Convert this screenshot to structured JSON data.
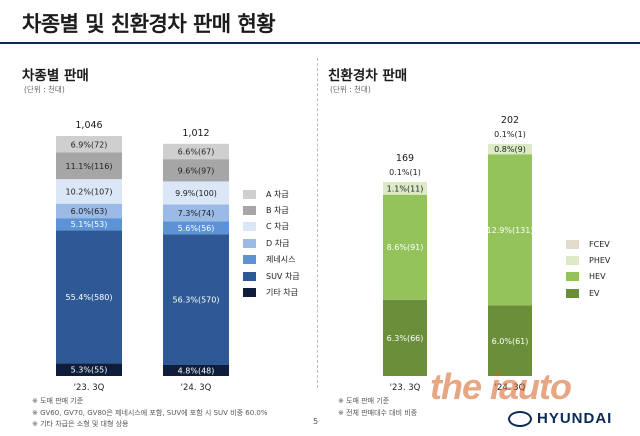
{
  "header": {
    "title": "차종별 및 친환경차 판매 현황"
  },
  "page_number": "5",
  "watermark": "the iauto",
  "brand": "HYUNDAI",
  "colors": {
    "title_rule": "#0b2a55",
    "A": "#cfcfcf",
    "B": "#a6a6a6",
    "C": "#dbe6f7",
    "D": "#9bbbe6",
    "GENESIS": "#5b93d6",
    "SUV": "#2f5994",
    "OTHER": "#0d1d3a",
    "FCEV": "#e4dccb",
    "PHEV": "#dcebc6",
    "HEV": "#93c35a",
    "EV": "#6b8e3a"
  },
  "chart_data": [
    {
      "type": "bar",
      "stacked": true,
      "title": "차종별 판매",
      "unit": "(단위 : 천대)",
      "categories": [
        "'23. 3Q",
        "'24. 3Q"
      ],
      "totals": [
        "1,046",
        "1,012"
      ],
      "series": [
        {
          "name": "기타 차급",
          "key": "OTHER",
          "values": [
            55,
            48
          ],
          "labels": [
            "5.3%(55)",
            "4.8%(48)"
          ]
        },
        {
          "name": "SUV 차급",
          "key": "SUV",
          "values": [
            580,
            570
          ],
          "labels": [
            "55.4%(580)",
            "56.3%(570)"
          ]
        },
        {
          "name": "제네시스",
          "key": "GENESIS",
          "values": [
            53,
            56
          ],
          "labels": [
            "5.1%(53)",
            "5.6%(56)"
          ]
        },
        {
          "name": "D 차급",
          "key": "D",
          "values": [
            63,
            74
          ],
          "labels": [
            "6.0%(63)",
            "7.3%(74)"
          ]
        },
        {
          "name": "C 차급",
          "key": "C",
          "values": [
            107,
            100
          ],
          "labels": [
            "10.2%(107)",
            "9.9%(100)"
          ]
        },
        {
          "name": "B 차급",
          "key": "B",
          "values": [
            116,
            97
          ],
          "labels": [
            "11.1%(116)",
            "9.6%(97)"
          ]
        },
        {
          "name": "A 차급",
          "key": "A",
          "values": [
            72,
            67
          ],
          "labels": [
            "6.9%(72)",
            "6.6%(67)"
          ]
        }
      ],
      "legend_order": [
        "A 차급",
        "B 차급",
        "C 차급",
        "D 차급",
        "제네시스",
        "SUV 차급",
        "기타 차급"
      ],
      "notes": [
        "※ 도매 판매 기준",
        "※ GV60, GV70, GV80은 제네시스에 포함, SUV에 포함 시 SUV 비중 60.0%",
        "※ 기타 차급은 소형 및 대형 상용"
      ]
    },
    {
      "type": "bar",
      "stacked": true,
      "title": "친환경차 판매",
      "unit": "(단위 : 천대)",
      "categories": [
        "'23. 3Q",
        "'24. 3Q"
      ],
      "totals": [
        "169",
        "202"
      ],
      "series": [
        {
          "name": "EV",
          "key": "EV",
          "values": [
            66,
            61
          ],
          "labels": [
            "6.3%(66)",
            "6.0%(61)"
          ]
        },
        {
          "name": "HEV",
          "key": "HEV",
          "values": [
            91,
            131
          ],
          "labels": [
            "8.6%(91)",
            "12.9%(131)"
          ]
        },
        {
          "name": "PHEV",
          "key": "PHEV",
          "values": [
            11,
            9
          ],
          "labels": [
            "1.1%(11)",
            "0.8%(9)"
          ]
        },
        {
          "name": "FCEV",
          "key": "FCEV",
          "values": [
            1,
            1
          ],
          "labels": [
            "0.1%(1)",
            "0.1%(1)"
          ]
        }
      ],
      "legend_order": [
        "FCEV",
        "PHEV",
        "HEV",
        "EV"
      ],
      "notes": [
        "※ 도매 판매 기준",
        "※ 전체 판매대수 대비 비중"
      ]
    }
  ]
}
